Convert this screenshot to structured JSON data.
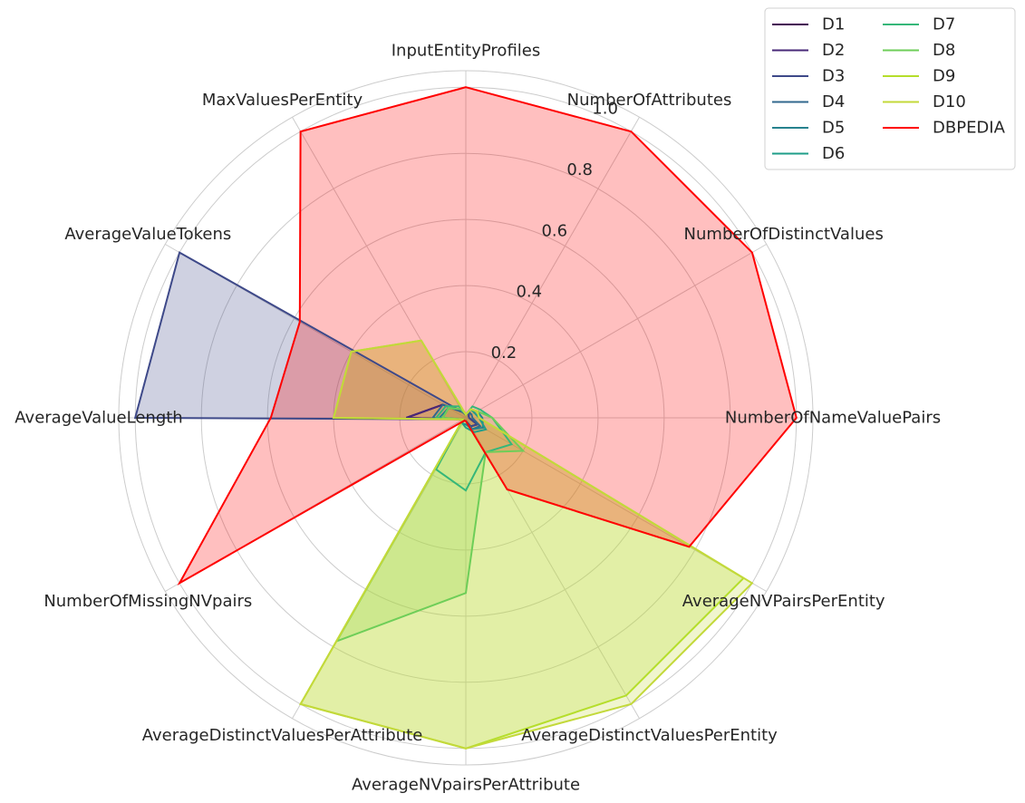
{
  "chart_data": {
    "type": "radar",
    "axes": [
      "InputEntityProfiles",
      "NumberOfAttributes",
      "NumberOfDistinctValues",
      "NumberOfNameValuePairs",
      "AverageNVPairsPerEntity",
      "AverageDistinctValuesPerEntity",
      "AverageNVpairsPerAttribute",
      "AverageDistinctValuesPerAttribute",
      "NumberOfMissingNVpairs",
      "AverageValueLength",
      "AverageValueTokens",
      "MaxValuesPerEntity"
    ],
    "rticks": [
      "0.2",
      "0.4",
      "0.6",
      "0.8",
      "1.0"
    ],
    "rlim": [
      0,
      1.05
    ],
    "grid": true,
    "legend_placement": "top-right",
    "legend_columns": 2,
    "series": [
      {
        "name": "D1",
        "color": "#440154",
        "fill": false,
        "values": [
          0.01,
          0.02,
          0.01,
          0.01,
          0.04,
          0.03,
          0.01,
          0.01,
          0.01,
          0.18,
          0.08,
          0.02
        ]
      },
      {
        "name": "D2",
        "color": "#482878",
        "fill": false,
        "values": [
          0.01,
          0.02,
          0.01,
          0.01,
          0.04,
          0.03,
          0.01,
          0.01,
          0.01,
          0.18,
          0.08,
          0.02
        ]
      },
      {
        "name": "D3",
        "color": "#3e4989",
        "fill": true,
        "values": [
          0.01,
          0.02,
          0.01,
          0.01,
          0.04,
          0.03,
          0.01,
          0.01,
          0.01,
          1.0,
          1.0,
          0.02
        ]
      },
      {
        "name": "D4",
        "color": "#31688e",
        "fill": false,
        "values": [
          0.01,
          0.02,
          0.02,
          0.02,
          0.05,
          0.04,
          0.01,
          0.01,
          0.01,
          0.1,
          0.08,
          0.02
        ]
      },
      {
        "name": "D5",
        "color": "#26828e",
        "fill": false,
        "values": [
          0.01,
          0.03,
          0.04,
          0.05,
          0.06,
          0.04,
          0.02,
          0.02,
          0.01,
          0.08,
          0.06,
          0.03
        ]
      },
      {
        "name": "D6",
        "color": "#1f9e89",
        "fill": false,
        "values": [
          0.01,
          0.03,
          0.03,
          0.04,
          0.07,
          0.05,
          0.03,
          0.02,
          0.01,
          0.07,
          0.06,
          0.03
        ]
      },
      {
        "name": "D7",
        "color": "#35b779",
        "fill": false,
        "values": [
          0.01,
          0.04,
          0.05,
          0.08,
          0.16,
          0.12,
          0.22,
          0.18,
          0.01,
          0.09,
          0.07,
          0.04
        ]
      },
      {
        "name": "D8",
        "color": "#6ece58",
        "fill": true,
        "values": [
          0.01,
          0.03,
          0.04,
          0.08,
          0.2,
          0.12,
          0.53,
          0.78,
          0.01,
          0.07,
          0.06,
          0.03
        ]
      },
      {
        "name": "D9",
        "color": "#b5de2b",
        "fill": true,
        "values": [
          0.01,
          0.03,
          0.04,
          0.04,
          0.97,
          0.97,
          1.0,
          1.0,
          0.01,
          0.4,
          0.4,
          0.27
        ]
      },
      {
        "name": "D10",
        "color": "#c3d93a",
        "fill": true,
        "values": [
          0.01,
          0.03,
          0.04,
          0.04,
          1.0,
          1.0,
          1.0,
          1.0,
          0.01,
          0.4,
          0.4,
          0.27
        ]
      },
      {
        "name": "DBPEDIA",
        "color": "#ff0000",
        "fill": true,
        "values": [
          1.0,
          1.0,
          1.0,
          1.0,
          0.78,
          0.25,
          0.01,
          0.01,
          1.0,
          0.59,
          0.58,
          1.0
        ]
      }
    ]
  }
}
